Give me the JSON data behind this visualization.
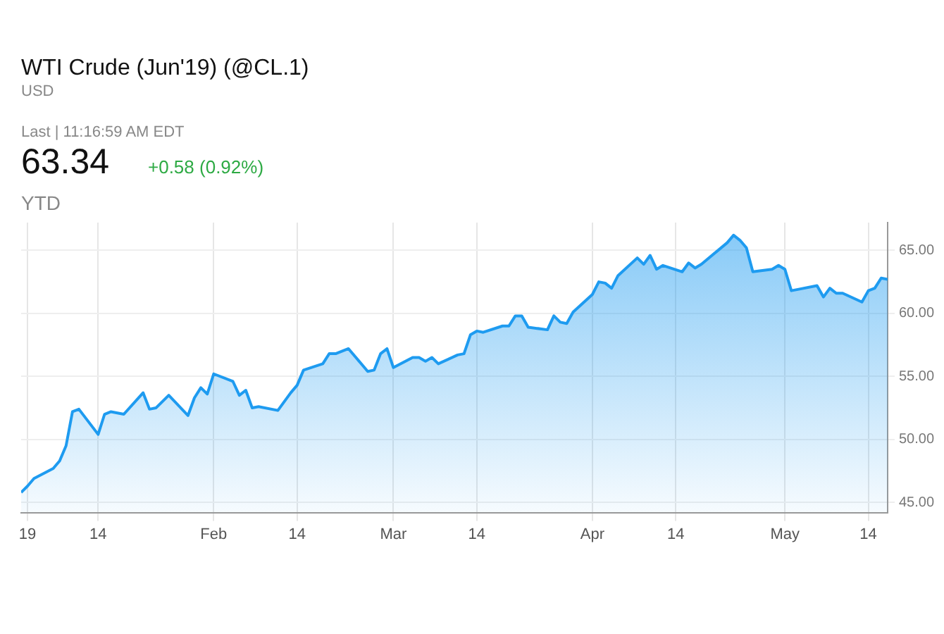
{
  "chart_data": {
    "type": "area",
    "title": "WTI Crude (Jun'19) (@CL.1)",
    "subtitle": "USD",
    "annotations": [
      "Last | 11:16:59 AM EDT",
      "63.34",
      "+0.58 (0.92%)",
      "YTD"
    ],
    "x": [
      "2019-01-02",
      "2019-01-03",
      "2019-01-04",
      "2019-01-07",
      "2019-01-08",
      "2019-01-09",
      "2019-01-10",
      "2019-01-11",
      "2019-01-14",
      "2019-01-15",
      "2019-01-16",
      "2019-01-18",
      "2019-01-21",
      "2019-01-22",
      "2019-01-23",
      "2019-01-25",
      "2019-01-28",
      "2019-01-29",
      "2019-01-30",
      "2019-01-31",
      "2019-02-01",
      "2019-02-04",
      "2019-02-05",
      "2019-02-06",
      "2019-02-07",
      "2019-02-08",
      "2019-02-11",
      "2019-02-13",
      "2019-02-14",
      "2019-02-15",
      "2019-02-18",
      "2019-02-19",
      "2019-02-20",
      "2019-02-22",
      "2019-02-25",
      "2019-02-26",
      "2019-02-27",
      "2019-02-28",
      "2019-03-01",
      "2019-03-04",
      "2019-03-05",
      "2019-03-06",
      "2019-03-07",
      "2019-03-08",
      "2019-03-11",
      "2019-03-12",
      "2019-03-13",
      "2019-03-14",
      "2019-03-15",
      "2019-03-18",
      "2019-03-19",
      "2019-03-20",
      "2019-03-21",
      "2019-03-22",
      "2019-03-25",
      "2019-03-26",
      "2019-03-27",
      "2019-03-28",
      "2019-03-29",
      "2019-04-01",
      "2019-04-02",
      "2019-04-03",
      "2019-04-04",
      "2019-04-05",
      "2019-04-08",
      "2019-04-09",
      "2019-04-10",
      "2019-04-11",
      "2019-04-12",
      "2019-04-15",
      "2019-04-16",
      "2019-04-17",
      "2019-04-18",
      "2019-04-22",
      "2019-04-23",
      "2019-04-24",
      "2019-04-25",
      "2019-04-26",
      "2019-04-29",
      "2019-04-30",
      "2019-05-01",
      "2019-05-02",
      "2019-05-03",
      "2019-05-06",
      "2019-05-07",
      "2019-05-08",
      "2019-05-09",
      "2019-05-10",
      "2019-05-13",
      "2019-05-14",
      "2019-05-15",
      "2019-05-16",
      "2019-05-17"
    ],
    "series": [
      {
        "color": "#1e9bf0",
        "values": [
          45.8,
          46.3,
          46.9,
          47.7,
          48.3,
          49.5,
          52.2,
          52.4,
          50.4,
          52.0,
          52.2,
          52.0,
          53.7,
          52.4,
          52.5,
          53.5,
          51.9,
          53.3,
          54.1,
          53.6,
          55.2,
          54.6,
          53.5,
          53.9,
          52.5,
          52.6,
          52.3,
          53.7,
          54.3,
          55.5,
          56.0,
          56.8,
          56.8,
          57.2,
          55.4,
          55.5,
          56.8,
          57.2,
          55.7,
          56.5,
          56.5,
          56.2,
          56.5,
          56.0,
          56.7,
          56.8,
          58.3,
          58.6,
          58.5,
          59.0,
          59.0,
          59.8,
          59.8,
          58.9,
          58.7,
          59.8,
          59.3,
          59.2,
          60.1,
          61.5,
          62.5,
          62.4,
          62.0,
          63.0,
          64.4,
          63.9,
          64.6,
          63.5,
          63.8,
          63.3,
          64.0,
          63.6,
          63.9,
          65.6,
          66.2,
          65.8,
          65.2,
          63.3,
          63.5,
          63.8,
          63.5,
          61.8,
          61.9,
          62.2,
          61.3,
          62.0,
          61.6,
          61.6,
          60.9,
          61.8,
          62.0,
          62.8,
          62.7
        ]
      }
    ],
    "xlim": [
      "2019-01-02",
      "2019-05-17"
    ],
    "xticks": [
      {
        "value": "2019-01-03",
        "label": "19"
      },
      {
        "value": "2019-01-14",
        "label": "14"
      },
      {
        "value": "2019-02-01",
        "label": "Feb"
      },
      {
        "value": "2019-02-14",
        "label": "14"
      },
      {
        "value": "2019-03-01",
        "label": "Mar"
      },
      {
        "value": "2019-03-14",
        "label": "14"
      },
      {
        "value": "2019-04-01",
        "label": "Apr"
      },
      {
        "value": "2019-04-14",
        "label": "14"
      },
      {
        "value": "2019-05-01",
        "label": "May"
      },
      {
        "value": "2019-05-14",
        "label": "14"
      }
    ],
    "ylim": [
      44.2,
      67.2
    ],
    "yticks": [
      {
        "value": 45,
        "label": "45.00"
      },
      {
        "value": 50,
        "label": "50.00"
      },
      {
        "value": 55,
        "label": "55.00"
      },
      {
        "value": 60,
        "label": "60.00"
      },
      {
        "value": 65,
        "label": "65.00"
      }
    ],
    "grid": true,
    "legend": false,
    "marker": "none",
    "line_style": "solid"
  }
}
